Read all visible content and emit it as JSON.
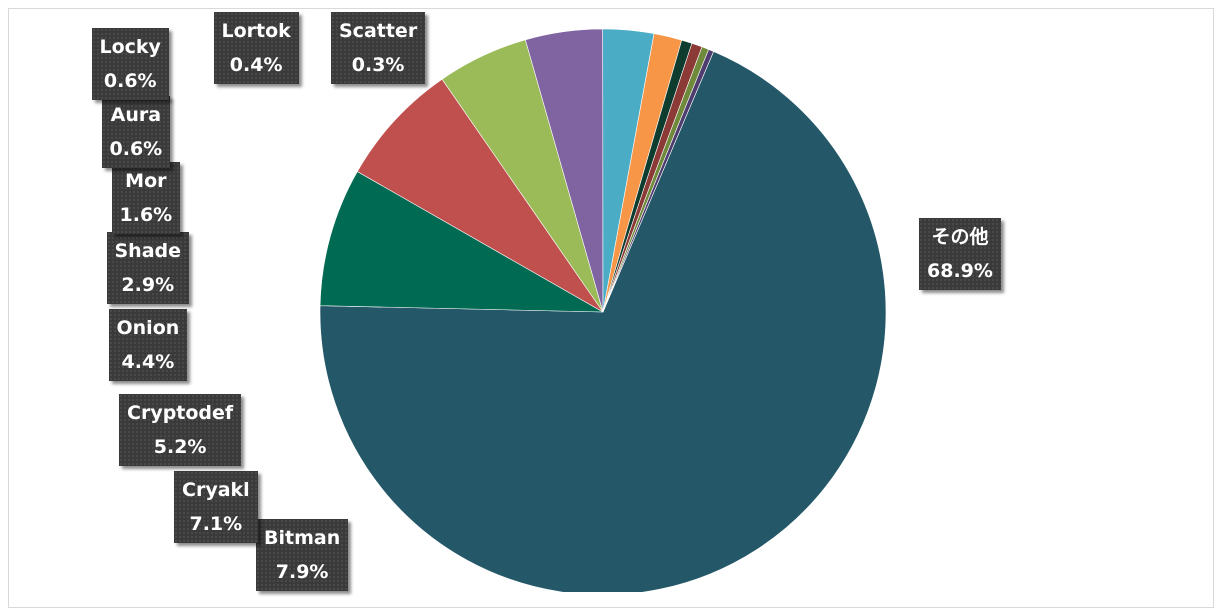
{
  "chart_data": {
    "type": "pie",
    "colors": {
      "その他": "#245869",
      "Bitman": "#006a53",
      "Cryakl": "#c0504d",
      "Cryptodef": "#9bbb59",
      "Onion": "#8064a2",
      "Shade": "#4bacc6",
      "Mor": "#f79646",
      "Aura": "#0e3d2f",
      "Locky": "#8c3a36",
      "Lortok": "#6e8a3a",
      "Scatter": "#4e3d6e"
    },
    "slices": [
      {
        "label": "その他",
        "value": 68.9,
        "display": "68.9%"
      },
      {
        "label": "Bitman",
        "value": 7.9,
        "display": "7.9%"
      },
      {
        "label": "Cryakl",
        "value": 7.1,
        "display": "7.1%"
      },
      {
        "label": "Cryptodef",
        "value": 5.2,
        "display": "5.2%"
      },
      {
        "label": "Onion",
        "value": 4.4,
        "display": "4.4%"
      },
      {
        "label": "Shade",
        "value": 2.9,
        "display": "2.9%"
      },
      {
        "label": "Mor",
        "value": 1.6,
        "display": "1.6%"
      },
      {
        "label": "Aura",
        "value": 0.6,
        "display": "0.6%"
      },
      {
        "label": "Locky",
        "value": 0.6,
        "display": "0.6%"
      },
      {
        "label": "Lortok",
        "value": 0.4,
        "display": "0.4%"
      },
      {
        "label": "Scatter",
        "value": 0.3,
        "display": "0.3%"
      }
    ]
  }
}
